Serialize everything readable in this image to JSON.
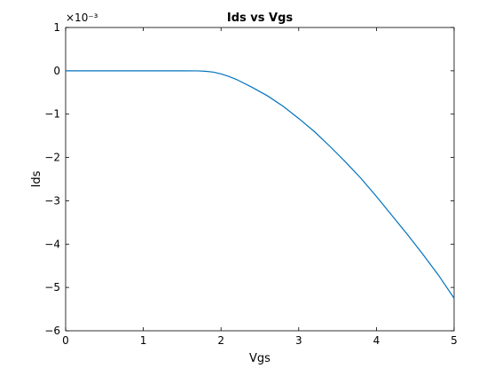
{
  "chart_data": {
    "type": "line",
    "title": "Ids vs Vgs",
    "xlabel": "Vgs",
    "ylabel": "Ids",
    "xlim": [
      0,
      5
    ],
    "ylim": [
      -6,
      1
    ],
    "y_exponent_label": "×10⁻³",
    "y_scale_factor": 0.001,
    "xticks": [
      "0",
      "1",
      "2",
      "3",
      "4",
      "5"
    ],
    "yticks": [
      "−6",
      "−5",
      "−4",
      "−3",
      "−2",
      "−1",
      "0",
      "1"
    ],
    "grid": false,
    "series": [
      {
        "color": "#0072bd",
        "x": [
          0,
          0.5,
          1.0,
          1.5,
          1.7,
          1.8,
          1.9,
          2.0,
          2.1,
          2.2,
          2.4,
          2.6,
          2.8,
          3.0,
          3.2,
          3.4,
          3.6,
          3.8,
          4.0,
          4.2,
          4.4,
          4.6,
          4.8,
          5.0
        ],
        "y": [
          0,
          0,
          0,
          0,
          -0.002,
          -0.01,
          -0.03,
          -0.07,
          -0.13,
          -0.2,
          -0.38,
          -0.58,
          -0.82,
          -1.1,
          -1.4,
          -1.74,
          -2.1,
          -2.48,
          -2.9,
          -3.34,
          -3.78,
          -4.24,
          -4.72,
          -5.25
        ]
      }
    ]
  }
}
